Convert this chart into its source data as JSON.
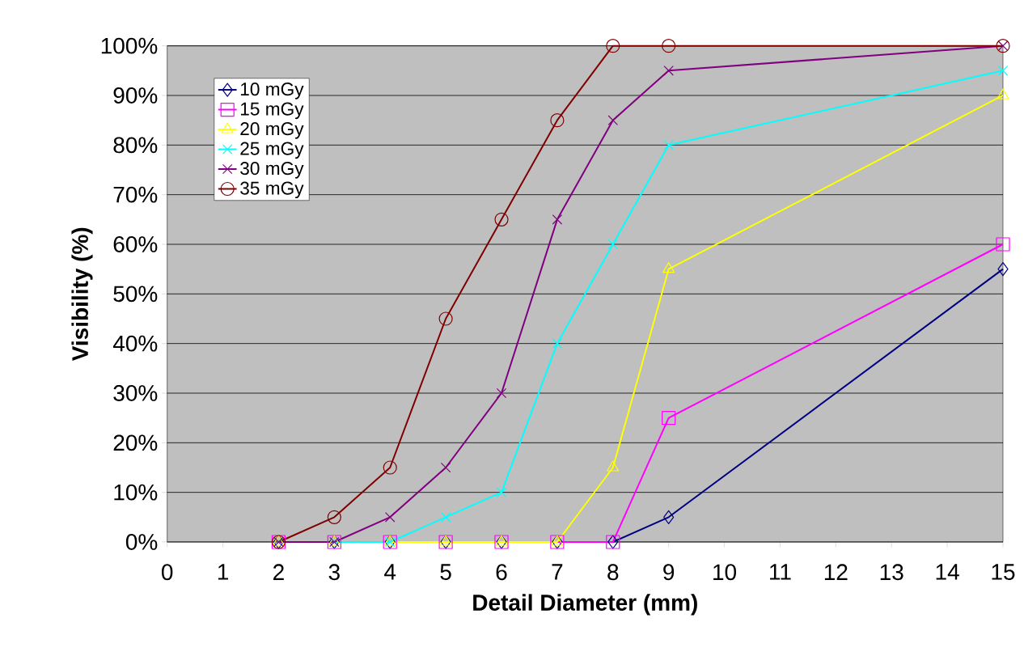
{
  "chart_data": {
    "type": "line",
    "xlabel": "Detail Diameter (mm)",
    "ylabel": "Visibility (%)",
    "xlim": [
      0,
      15
    ],
    "xticks": [
      0,
      1,
      2,
      3,
      4,
      5,
      6,
      7,
      8,
      9,
      10,
      11,
      12,
      13,
      14,
      15
    ],
    "ylim": [
      0,
      100
    ],
    "yticks": [
      {
        "value": 0,
        "label": "0%"
      },
      {
        "value": 10,
        "label": "10%"
      },
      {
        "value": 20,
        "label": "20%"
      },
      {
        "value": 30,
        "label": "30%"
      },
      {
        "value": 40,
        "label": "40%"
      },
      {
        "value": 50,
        "label": "50%"
      },
      {
        "value": 60,
        "label": "60%"
      },
      {
        "value": 70,
        "label": "70%"
      },
      {
        "value": 80,
        "label": "80%"
      },
      {
        "value": 90,
        "label": "90%"
      },
      {
        "value": 100,
        "label": "100%"
      }
    ],
    "x": [
      2,
      3,
      4,
      5,
      6,
      7,
      8,
      9,
      15
    ],
    "grid": "y",
    "legend": "top left",
    "series": [
      {
        "name": "10 mGy",
        "color": "#000080",
        "marker": "diamond",
        "values": [
          0,
          0,
          0,
          0,
          0,
          0,
          0,
          5,
          55
        ]
      },
      {
        "name": "15 mGy",
        "color": "#ff00ff",
        "marker": "square",
        "values": [
          0,
          0,
          0,
          0,
          0,
          0,
          0,
          25,
          60
        ]
      },
      {
        "name": "20 mGy",
        "color": "#ffff00",
        "marker": "triangle",
        "values": [
          0,
          0,
          0,
          0,
          0,
          0,
          15,
          55,
          90
        ]
      },
      {
        "name": "25 mGy",
        "color": "#00ffff",
        "marker": "cross",
        "values": [
          0,
          0,
          0,
          5,
          10,
          40,
          60,
          80,
          95
        ]
      },
      {
        "name": "30 mGy",
        "color": "#800080",
        "marker": "cross",
        "values": [
          0,
          0,
          5,
          15,
          30,
          65,
          85,
          95,
          100
        ]
      },
      {
        "name": "35 mGy",
        "color": "#800000",
        "marker": "circle",
        "values": [
          0,
          5,
          15,
          45,
          65,
          85,
          100,
          100,
          100
        ]
      }
    ]
  }
}
